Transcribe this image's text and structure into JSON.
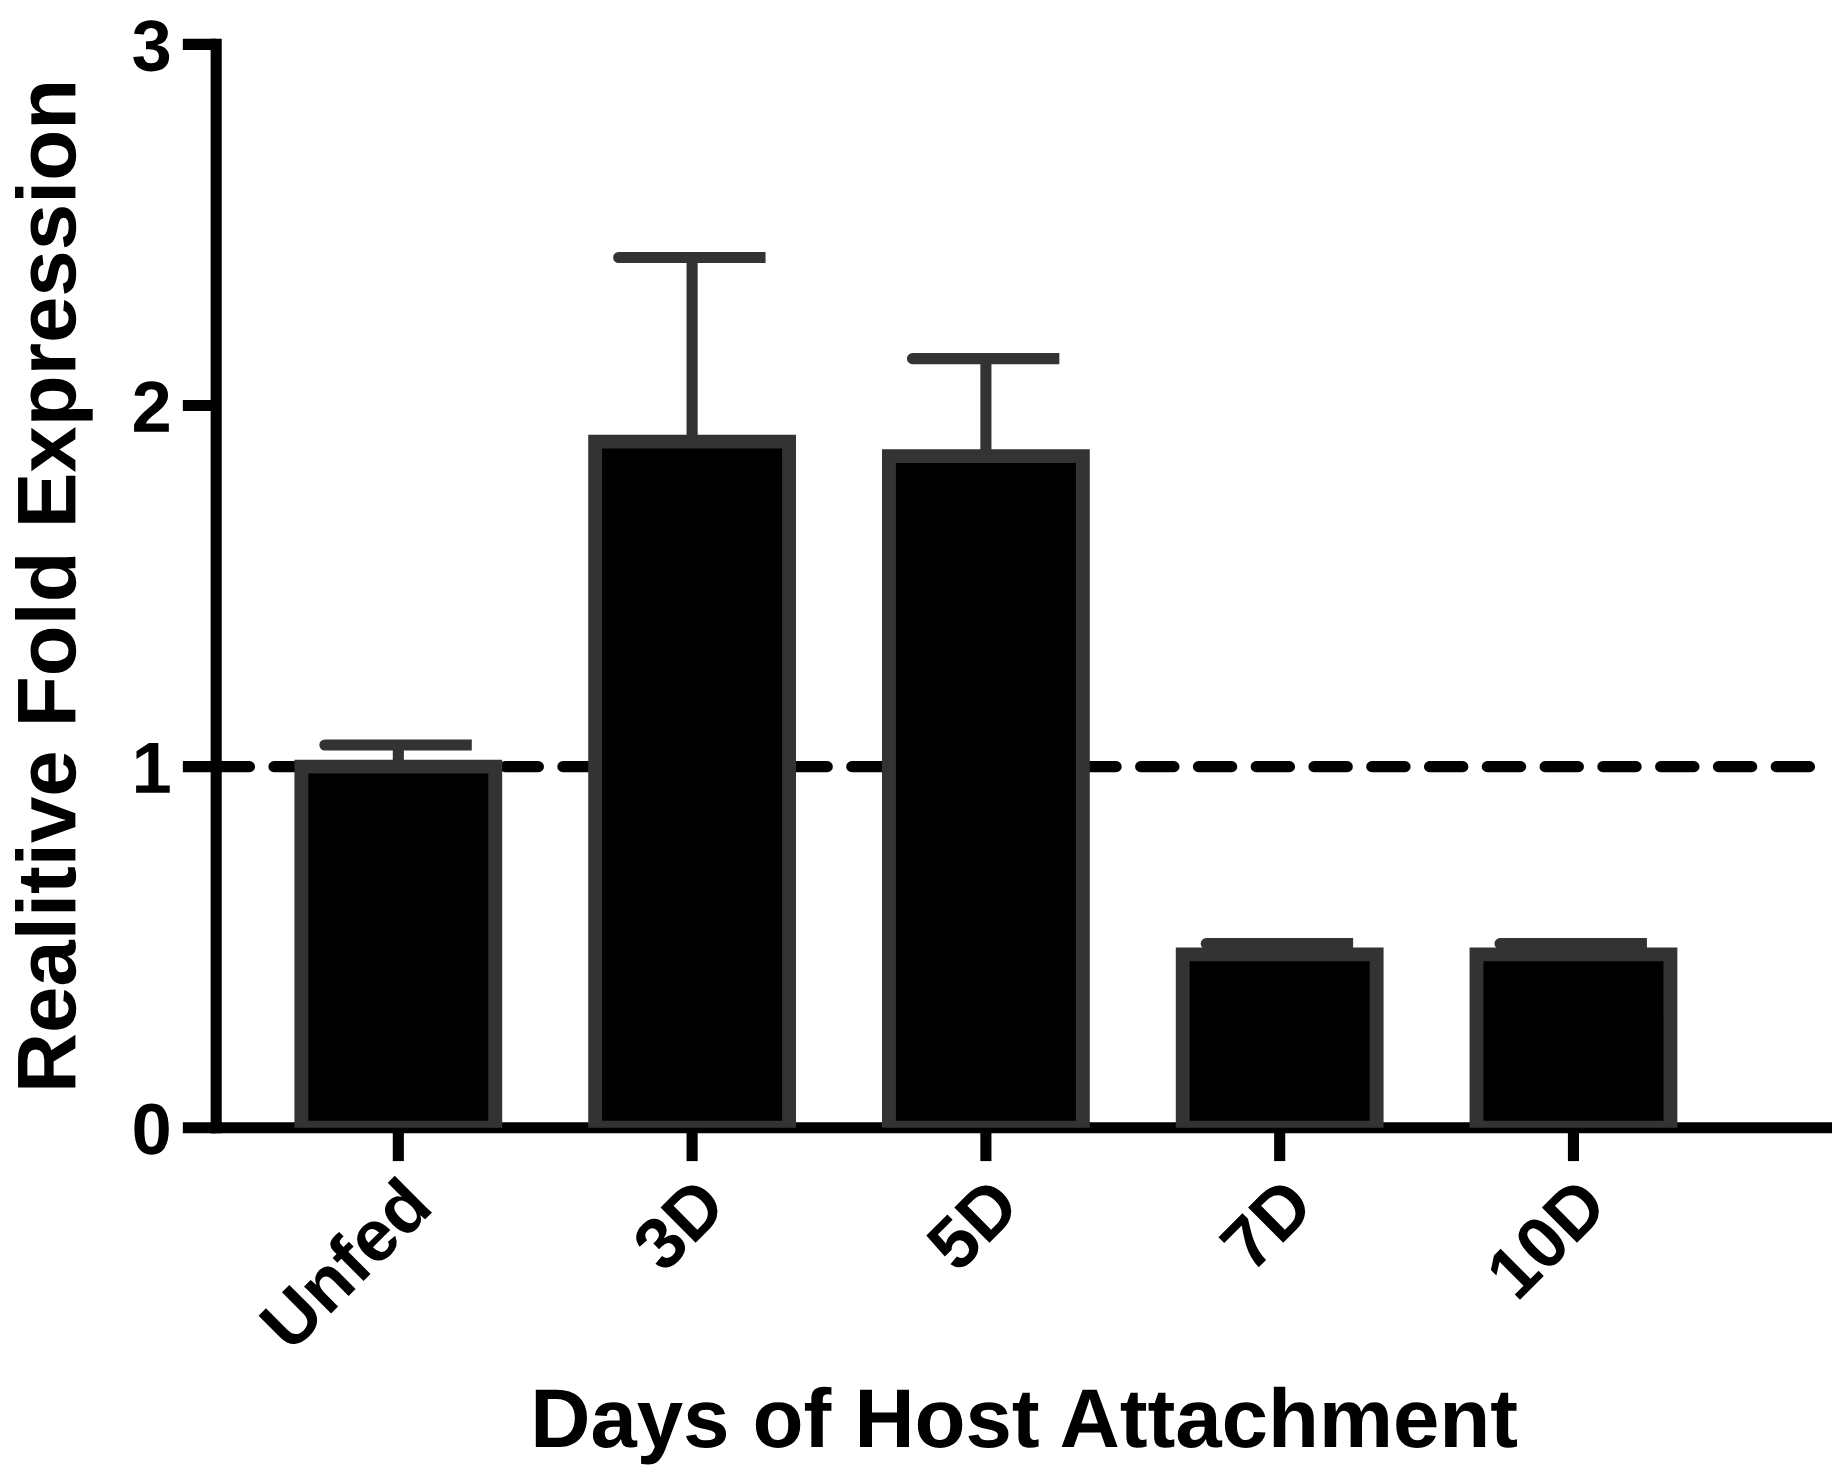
{
  "chart_data": {
    "type": "bar",
    "xlabel": "Days of Host Attachment",
    "ylabel": "Realitive Fold Expression",
    "categories": [
      "Unfed",
      "3D",
      "5D",
      "7D",
      "10D"
    ],
    "series": [
      {
        "color": "#000000",
        "values": [
          1.0,
          1.9,
          1.86,
          0.48,
          0.48
        ],
        "errors": [
          [
            1.0,
            1.06
          ],
          [
            1.9,
            2.41
          ],
          [
            1.86,
            2.13
          ],
          [
            0.48,
            0.51
          ],
          [
            0.48,
            0.51
          ]
        ]
      }
    ],
    "ylim": [
      0,
      3
    ],
    "yticks": [
      0,
      1,
      2,
      3
    ],
    "grid": false,
    "legend": false,
    "ref_lines": [
      {
        "axis": "y",
        "value": 1,
        "line_style": "dashed",
        "color": "#000000"
      }
    ]
  }
}
